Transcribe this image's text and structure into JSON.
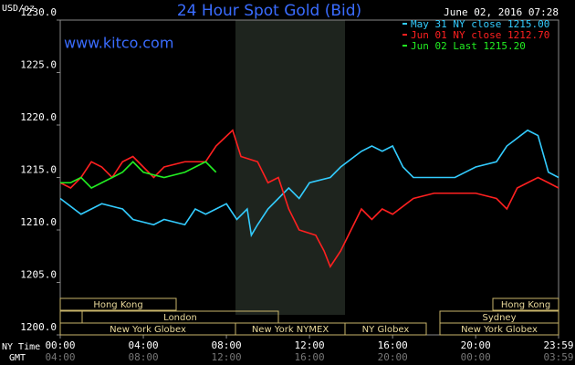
{
  "chart_data": {
    "type": "line",
    "title": "24 Hour Spot Gold (Bid)",
    "timestamp": "June 02, 2016 07:28",
    "website": "www.kitco.com",
    "y_label": "USD/oz",
    "x_label": "NY Time",
    "x2_label": "GMT",
    "ylim": [
      1200,
      1230
    ],
    "yticks": [
      {
        "value": 1200,
        "label": "1200.0"
      },
      {
        "value": 1205,
        "label": "1205.0"
      },
      {
        "value": 1210,
        "label": "1210.0"
      },
      {
        "value": 1215,
        "label": "1215.0"
      },
      {
        "value": 1220,
        "label": "1220.0"
      },
      {
        "value": 1225,
        "label": "1225.0"
      },
      {
        "value": 1230,
        "label": "1230.0"
      }
    ],
    "xlim": [
      0,
      23.99
    ],
    "xticks": [
      {
        "value": 0,
        "label": "00:00"
      },
      {
        "value": 4,
        "label": "04:00"
      },
      {
        "value": 8,
        "label": "08:00"
      },
      {
        "value": 12,
        "label": "12:00"
      },
      {
        "value": 16,
        "label": "16:00"
      },
      {
        "value": 20,
        "label": "20:00"
      },
      {
        "value": 23.99,
        "label": "23:59"
      }
    ],
    "x2ticks": [
      {
        "value": 0,
        "label": "04:00"
      },
      {
        "value": 4,
        "label": "08:00"
      },
      {
        "value": 8,
        "label": "12:00"
      },
      {
        "value": 12,
        "label": "16:00"
      },
      {
        "value": 16,
        "label": "20:00"
      },
      {
        "value": 20,
        "label": "00:00"
      },
      {
        "value": 23.99,
        "label": "03:59"
      }
    ],
    "sessions": [
      "Hong Kong",
      "Hong Kong",
      "London",
      "Sydney",
      "New York Globex",
      "New York NYMEX",
      "NY Globex",
      "New York Globex"
    ],
    "series": [
      {
        "name": "May 31 NY close 1215.00",
        "color": "#33ccff",
        "x": [
          0,
          1,
          2,
          3,
          3.5,
          4.5,
          5,
          6,
          6.5,
          7,
          7.5,
          8,
          8.5,
          9,
          9.2,
          9.5,
          10,
          10.5,
          11,
          11.5,
          12,
          13,
          13.5,
          14.5,
          15,
          15.5,
          16,
          16.5,
          17,
          19,
          20,
          21,
          21.5,
          22.5,
          23,
          23.5,
          23.99
        ],
        "values": [
          1213,
          1211.5,
          1212.5,
          1212,
          1211,
          1210.5,
          1211,
          1210.5,
          1212,
          1211.5,
          1212,
          1212.5,
          1211,
          1212,
          1209.5,
          1210.5,
          1212,
          1213,
          1214,
          1213,
          1214.5,
          1215,
          1216,
          1217.5,
          1218,
          1217.5,
          1218,
          1216,
          1215,
          1215,
          1216,
          1216.5,
          1218,
          1219.5,
          1219,
          1215.5,
          1215
        ]
      },
      {
        "name": "Jun 01 NY close 1212.70",
        "color": "#ff2020",
        "x": [
          0,
          0.5,
          1,
          1.5,
          2,
          2.5,
          3,
          3.5,
          4,
          4.5,
          5,
          6,
          7,
          7.5,
          8.3,
          8.7,
          9.5,
          10,
          10.5,
          11,
          11.5,
          12.3,
          12.7,
          13,
          13.5,
          14,
          14.5,
          15,
          15.5,
          16,
          17,
          18,
          20,
          21,
          21.5,
          22,
          23,
          23.5,
          23.99
        ],
        "values": [
          1214.5,
          1214,
          1215,
          1216.5,
          1216,
          1215,
          1216.5,
          1217,
          1216,
          1215,
          1216,
          1216.5,
          1216.5,
          1218,
          1219.5,
          1217,
          1216.5,
          1214.5,
          1215,
          1212,
          1210,
          1209.5,
          1208,
          1206.5,
          1208,
          1210,
          1212,
          1211,
          1212,
          1211.5,
          1213,
          1213.5,
          1213.5,
          1213,
          1212,
          1214,
          1215,
          1214.5,
          1214
        ]
      },
      {
        "name": "Jun 02 Last 1215.20",
        "color": "#22ee22",
        "x": [
          0,
          0.5,
          1,
          1.5,
          2,
          3,
          3.5,
          4,
          5,
          6,
          6.5,
          7,
          7.5
        ],
        "values": [
          1214.5,
          1214.5,
          1215,
          1214,
          1214.5,
          1215.5,
          1216.5,
          1215.5,
          1215,
          1215.5,
          1216,
          1216.5,
          1215.5
        ]
      }
    ]
  }
}
